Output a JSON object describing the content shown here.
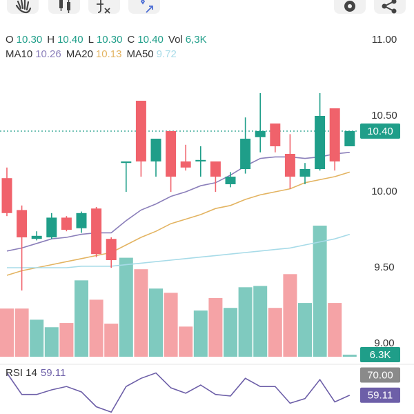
{
  "chart_data": {
    "type": "candlestick",
    "header": [
      {
        "label": "O",
        "value": "10.30"
      },
      {
        "label": "H",
        "value": "10.40"
      },
      {
        "label": "L",
        "value": "10.30"
      },
      {
        "label": "C",
        "value": "10.40"
      },
      {
        "label": "Vol",
        "value": "6,3K"
      }
    ],
    "open": [
      10.09,
      9.88,
      9.69,
      9.7,
      9.83,
      9.76,
      9.89,
      9.69,
      10.19,
      10.6,
      10.2,
      10.4,
      10.2,
      10.2,
      10.2,
      10.05,
      10.15,
      10.36,
      10.45,
      10.25,
      10.1,
      10.15,
      10.55,
      10.3
    ],
    "high": [
      10.16,
      9.91,
      9.74,
      9.86,
      9.84,
      9.87,
      9.9,
      9.7,
      10.2,
      10.6,
      10.35,
      10.4,
      10.31,
      10.3,
      10.2,
      10.13,
      10.49,
      10.65,
      10.45,
      10.38,
      10.19,
      10.65,
      10.55,
      10.4
    ],
    "low": [
      9.84,
      9.35,
      9.68,
      9.69,
      9.74,
      9.73,
      9.57,
      9.5,
      10.0,
      10.1,
      10.1,
      10.0,
      10.14,
      10.1,
      10.0,
      10.03,
      10.12,
      10.26,
      10.26,
      10.02,
      10.05,
      10.14,
      10.14,
      10.3
    ],
    "close": [
      9.86,
      9.7,
      9.71,
      9.83,
      9.75,
      9.86,
      9.59,
      9.55,
      10.2,
      10.2,
      10.35,
      10.1,
      10.16,
      10.21,
      10.1,
      10.1,
      10.35,
      10.4,
      10.3,
      10.1,
      10.15,
      10.5,
      10.2,
      10.4
    ],
    "up_color": "#1f9e89",
    "down_color": "#f0626b",
    "ylim": [
      8.9,
      11.15
    ],
    "yticks": [
      {
        "value": 11,
        "label": "11.00"
      },
      {
        "value": 10.5,
        "label": "10.50"
      },
      {
        "value": 10,
        "label": "10.00"
      },
      {
        "value": 9.5,
        "label": "9.50"
      },
      {
        "value": 9,
        "label": "9.00"
      }
    ],
    "last_price": {
      "value": 10.4,
      "label": "10.40"
    },
    "volume": {
      "values": [
        147,
        147,
        113,
        90,
        103,
        233,
        174,
        101,
        302,
        267,
        208,
        195,
        92,
        141,
        179,
        149,
        212,
        216,
        149,
        252,
        164,
        400,
        164,
        6.3
      ],
      "ylim": [
        0,
        400
      ],
      "last_label": "6.3K",
      "up_color": "#7fcabf",
      "down_color": "#f5a3a6"
    },
    "moving_averages": [
      {
        "name": "MA10",
        "value_label": "10.26",
        "color": "#8b7fba",
        "values": [
          9.61,
          9.63,
          9.66,
          9.69,
          9.7,
          9.72,
          9.73,
          9.73,
          9.81,
          9.88,
          9.92,
          9.97,
          10.0,
          10.04,
          10.06,
          10.11,
          10.17,
          10.22,
          10.23,
          10.23,
          10.22,
          10.23,
          10.25,
          10.26
        ]
      },
      {
        "name": "MA20",
        "value_label": "10.13",
        "color": "#e3b462",
        "values": [
          9.45,
          9.48,
          9.5,
          9.52,
          9.54,
          9.56,
          9.58,
          9.6,
          9.65,
          9.7,
          9.74,
          9.79,
          9.82,
          9.85,
          9.89,
          9.91,
          9.95,
          9.98,
          10.0,
          10.02,
          10.06,
          10.08,
          10.1,
          10.13
        ]
      },
      {
        "name": "MA50",
        "value_label": "9.72",
        "color": "#a7dbe8",
        "values": [
          9.5,
          9.5,
          9.5,
          9.5,
          9.5,
          9.51,
          9.51,
          9.51,
          9.52,
          9.53,
          9.54,
          9.55,
          9.56,
          9.57,
          9.58,
          9.59,
          9.6,
          9.61,
          9.62,
          9.63,
          9.65,
          9.67,
          9.69,
          9.72
        ]
      }
    ],
    "rsi": {
      "name": "RSI 14",
      "value_label": "59.11",
      "color": "#6d5fa8",
      "values": [
        71.1,
        59.5,
        59.5,
        62.0,
        63.8,
        60.9,
        52.9,
        50.0,
        63.8,
        68.2,
        71.1,
        63.1,
        60.2,
        64.6,
        59.5,
        58.7,
        68.2,
        63.8,
        63.8,
        54.8,
        57.3,
        67.5,
        55.5,
        59.11
      ],
      "ylim": [
        49,
        75
      ],
      "yticks": [
        {
          "value": 70,
          "label": "70.00"
        }
      ]
    }
  }
}
